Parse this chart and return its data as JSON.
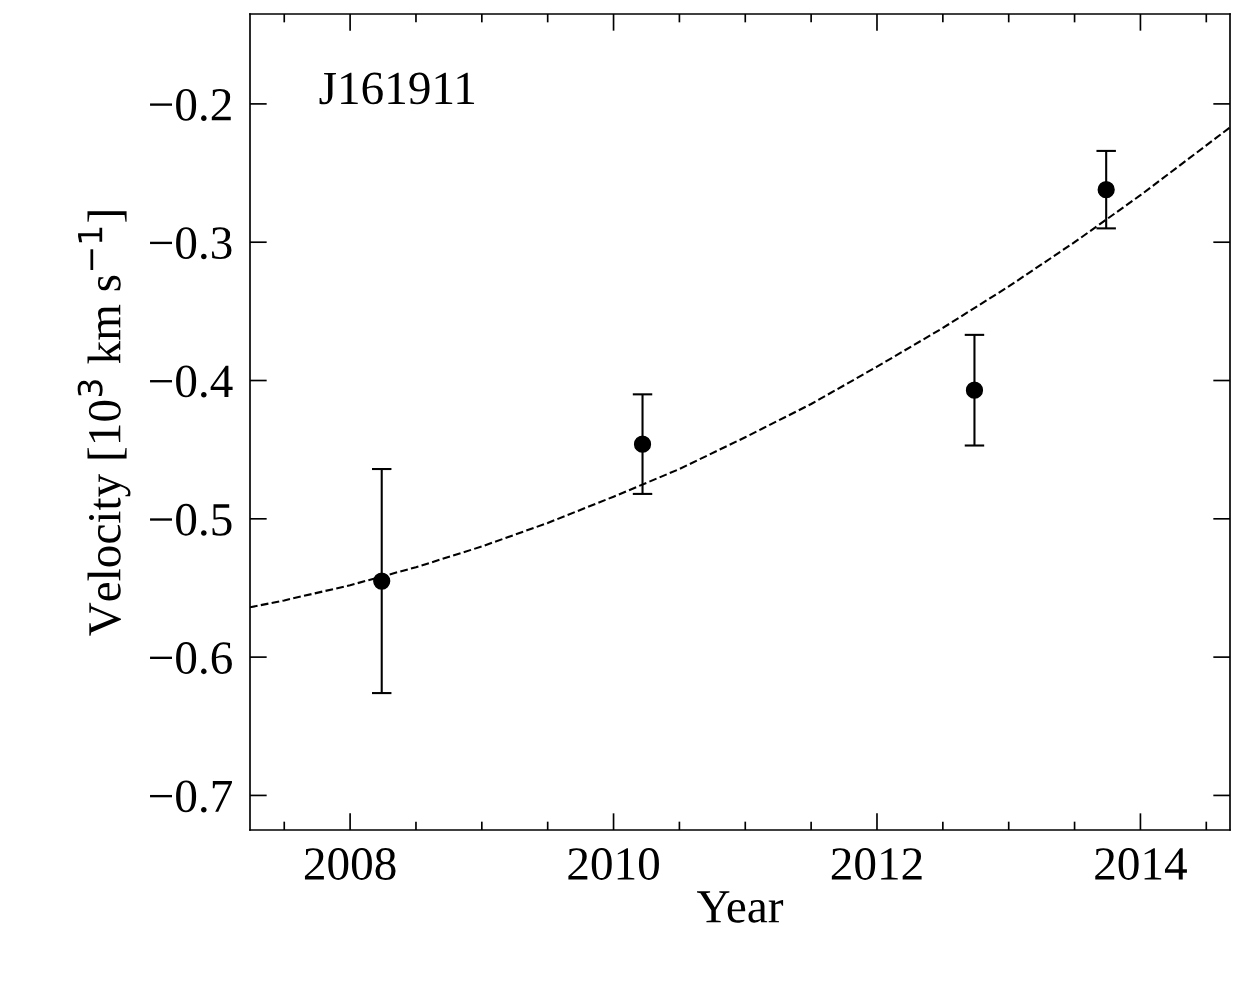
{
  "chart_data": {
    "type": "scatter",
    "xlabel": "Year",
    "ylabel": "Velocity [10$^{3}$ km s$^{−1}$]",
    "annotations": [
      "J161911"
    ],
    "x": [
      2008.24,
      2010.22,
      2012.74,
      2013.74
    ],
    "series": [
      {
        "type": "scatter",
        "color": "#000000",
        "marker": "circle",
        "values": [
          -0.545,
          -0.446,
          -0.407,
          -0.262
        ],
        "errors": [
          0.081,
          0.036,
          0.04,
          0.028
        ]
      },
      {
        "type": "line",
        "color": "#000000",
        "line_style": "dashed",
        "marker": "none",
        "x": [
          2007.24,
          2007.5,
          2008.0,
          2008.5,
          2009.0,
          2009.5,
          2010.0,
          2010.5,
          2011.0,
          2011.5,
          2012.0,
          2012.5,
          2013.0,
          2013.5,
          2014.0,
          2014.5,
          2014.68
        ],
        "values": [
          -0.564,
          -0.559,
          -0.548,
          -0.535,
          -0.52,
          -0.503,
          -0.484,
          -0.464,
          -0.441,
          -0.417,
          -0.39,
          -0.362,
          -0.332,
          -0.3,
          -0.266,
          -0.23,
          -0.217
        ]
      }
    ],
    "xlim": [
      2007.24,
      2014.68
    ],
    "xticks": [
      2008,
      2010,
      2012,
      2014
    ],
    "ylim": [
      -0.725,
      -0.135
    ],
    "yticks": [
      {
        "value": -0.7,
        "label": "−0.7"
      },
      {
        "value": -0.6,
        "label": "−0.6"
      },
      {
        "value": -0.5,
        "label": "−0.5"
      },
      {
        "value": -0.4,
        "label": "−0.4"
      },
      {
        "value": -0.3,
        "label": "−0.3"
      },
      {
        "value": -0.2,
        "label": "−0.2"
      }
    ],
    "grid": false,
    "legend": false
  }
}
